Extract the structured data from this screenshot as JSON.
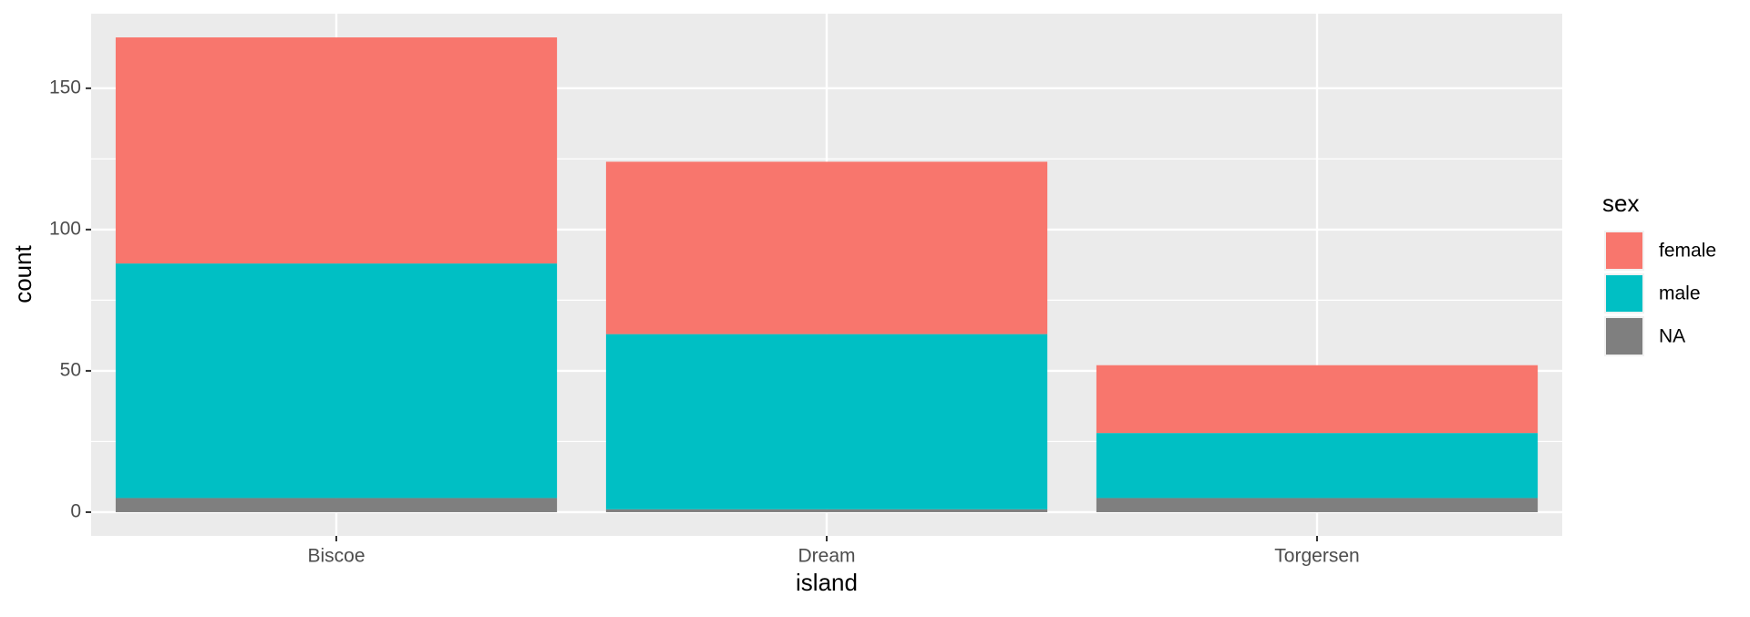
{
  "chart_data": {
    "type": "stacked_bar",
    "x_label": "island",
    "y_label": "count",
    "legend_title": "sex",
    "categories": [
      "Biscoe",
      "Dream",
      "Torgersen"
    ],
    "series": [
      {
        "name": "female",
        "color": "#f8766d",
        "values": [
          80,
          61,
          24
        ]
      },
      {
        "name": "male",
        "color": "#00bfc4",
        "values": [
          83,
          62,
          23
        ]
      },
      {
        "name": "NA",
        "color": "#7f7f7f",
        "values": [
          5,
          1,
          5
        ]
      }
    ],
    "ylim": [
      -8.4,
      176.4
    ],
    "yticks": [
      0,
      50,
      100,
      150
    ],
    "grid": true,
    "legend": "right"
  }
}
